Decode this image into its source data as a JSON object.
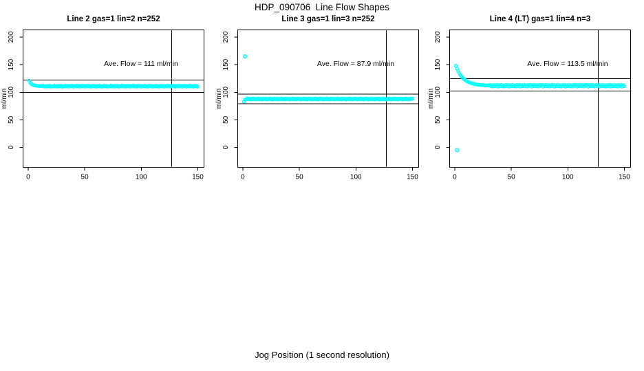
{
  "title": "HDP_090706  Line Flow Shapes",
  "xlabel": "Jog Position (1 second resolution)",
  "point_color": "#00FFFF",
  "line_color": "#000000",
  "chart_data": [
    {
      "type": "scatter",
      "title": "Line 2 gas=1 lin=2 n=252",
      "annotation": "Ave. Flow =  111  ml/min",
      "ylabel": "ml/min",
      "ave_flow": 111,
      "x_ticks": [
        0,
        50,
        100,
        150
      ],
      "y_ticks": [
        0,
        50,
        100,
        150,
        200
      ],
      "x_range": [
        -4.5,
        155.5
      ],
      "y_range": [
        -36,
        213
      ],
      "hlines": [
        122.1,
        99.9
      ],
      "vline": 127,
      "x_start": 1,
      "y_values": [
        121,
        117,
        115,
        113.7,
        112.8,
        112.2,
        111.8,
        111.5,
        111.4,
        111.2,
        111.2,
        111.1,
        112,
        110.4,
        111.3,
        110.1,
        111.7,
        110.8,
        111.8,
        110,
        111.2,
        110.5,
        112,
        110.4,
        111.3,
        110.1,
        111.7,
        110.8,
        111.8,
        110,
        111.2,
        110.5,
        112,
        110.4,
        111.3,
        110.1,
        111.7,
        110.8,
        111.8,
        110,
        111.2,
        110.5,
        112,
        110.4,
        111.3,
        110.1,
        111.7,
        110.8,
        111.8,
        110,
        111.2,
        110.5,
        112,
        110.4,
        111.3,
        110.1,
        111.7,
        110.8,
        111.8,
        110,
        111.2,
        110.5,
        112,
        110.4,
        111.3,
        110.1,
        111.7,
        110.8,
        111.8,
        110,
        111.2,
        110.5,
        112,
        110.4,
        111.3,
        110.1,
        111.7,
        110.8,
        111.8,
        110,
        111.2,
        110.5,
        112,
        110.4,
        111.3,
        110.1,
        111.7,
        110.8,
        111.8,
        110,
        111.2,
        110.5,
        112,
        110.4,
        111.3,
        110.1,
        111.7,
        110.8,
        111.8,
        110,
        111.2,
        110.5,
        112,
        110.4,
        111.3,
        110.1,
        111.7,
        110.8,
        111.8,
        110,
        111.2,
        110.5,
        112,
        110.4,
        111.3,
        110.1,
        111.7,
        110.8,
        111.8,
        110,
        111.2,
        110.5,
        112,
        110.4,
        111.3,
        110.1,
        111.7,
        110.8,
        111.8,
        110,
        111.2,
        110.5,
        112,
        110.4,
        111.3,
        110.1,
        111.7,
        110.8,
        111.8,
        110,
        111.2,
        110.5,
        112,
        110.4,
        111.3,
        110.1,
        111.7,
        110.8,
        111.8,
        110
      ],
      "outliers": []
    },
    {
      "type": "scatter",
      "title": "Line 3 gas=1 lin=3 n=252",
      "annotation": "Ave. Flow =  87.9  ml/min",
      "ylabel": "ml/min",
      "ave_flow": 87.9,
      "x_ticks": [
        0,
        50,
        100,
        150
      ],
      "y_ticks": [
        0,
        50,
        100,
        150,
        200
      ],
      "x_range": [
        -4.5,
        155.5
      ],
      "y_range": [
        -36,
        213
      ],
      "hlines": [
        96.7,
        79.1
      ],
      "vline": 127,
      "x_start": 1,
      "y_values": [
        83,
        86.5,
        87.3,
        88.8,
        87.2,
        88.1,
        86.9,
        88.5,
        87.6,
        88.6,
        86.8,
        88,
        87.3,
        88.8,
        87.2,
        88.1,
        86.9,
        88.5,
        87.6,
        88.6,
        86.8,
        88,
        87.3,
        88.8,
        87.2,
        88.1,
        86.9,
        88.5,
        87.6,
        88.6,
        86.8,
        88,
        87.3,
        88.8,
        87.2,
        88.1,
        86.9,
        88.5,
        87.6,
        88.6,
        86.8,
        88,
        87.3,
        88.8,
        87.2,
        88.1,
        86.9,
        88.5,
        87.6,
        88.6,
        86.8,
        88,
        87.3,
        88.8,
        87.2,
        88.1,
        86.9,
        88.5,
        87.6,
        88.6,
        86.8,
        88,
        87.3,
        88.8,
        87.2,
        88.1,
        86.9,
        88.5,
        87.6,
        88.6,
        86.8,
        88,
        87.3,
        88.8,
        87.2,
        88.1,
        86.9,
        88.5,
        87.6,
        88.6,
        86.8,
        88,
        87.3,
        88.8,
        87.2,
        88.1,
        86.9,
        88.5,
        87.6,
        88.6,
        86.8,
        88,
        87.3,
        88.8,
        87.2,
        88.1,
        86.9,
        88.5,
        87.6,
        88.6,
        86.8,
        88,
        87.3,
        88.8,
        87.2,
        88.1,
        86.9,
        88.5,
        87.6,
        88.6,
        86.8,
        88,
        87.3,
        88.8,
        87.2,
        88.1,
        86.9,
        88.5,
        87.6,
        88.6,
        86.8,
        88,
        87.3,
        88.8,
        87.2,
        88.1,
        86.9,
        88.5,
        87.6,
        88.6,
        86.8,
        88,
        87.3,
        88.8,
        87.2,
        88.1,
        86.9,
        88.5,
        87.6,
        88.6,
        86.8,
        88,
        87.3,
        88.8,
        87.2,
        88.1,
        86.9,
        88.5,
        87.6,
        88.6
      ],
      "outliers": [
        [
          2,
          165
        ]
      ]
    },
    {
      "type": "scatter",
      "title": "Line 4 (LT) gas=1 lin=4 n=3",
      "annotation": "Ave. Flow =  113.5  ml/min",
      "ylabel": "ml/min",
      "ave_flow": 113.5,
      "x_ticks": [
        0,
        50,
        100,
        150
      ],
      "y_ticks": [
        0,
        50,
        100,
        150,
        200
      ],
      "x_range": [
        -4.5,
        155.5
      ],
      "y_range": [
        -36,
        213
      ],
      "hlines": [
        124.9,
        102.2
      ],
      "vline": 127,
      "x_start": 1,
      "y_values": [
        148,
        142.9,
        138.5,
        134.7,
        131.5,
        128.7,
        126.3,
        124.3,
        122.5,
        121,
        119.8,
        118.6,
        117.7,
        116.9,
        116.2,
        115.6,
        115.1,
        114.6,
        114.3,
        113.9,
        113.6,
        113.4,
        113.2,
        113,
        112.9,
        112.7,
        112.6,
        112.5,
        112.4,
        112.3,
        113.5,
        110.8,
        112.6,
        110.4,
        113.2,
        111.5,
        113.4,
        110.2,
        112.8,
        111,
        113.5,
        110.8,
        112.6,
        110.4,
        113.2,
        111.5,
        113.4,
        110.2,
        112.8,
        111,
        113.5,
        110.8,
        112.6,
        110.4,
        113.2,
        111.5,
        113.4,
        110.2,
        112.8,
        111,
        113.5,
        110.8,
        112.6,
        110.4,
        113.2,
        111.5,
        113.4,
        110.2,
        112.8,
        111,
        113.5,
        110.8,
        112.6,
        110.4,
        113.2,
        111.5,
        113.4,
        110.2,
        112.8,
        111,
        113.5,
        110.8,
        112.6,
        110.4,
        113.2,
        111.5,
        113.4,
        110.2,
        112.8,
        111,
        113.5,
        110.8,
        112.6,
        110.4,
        113.2,
        111.5,
        113.4,
        110.2,
        112.8,
        111,
        113.5,
        110.8,
        112.6,
        110.4,
        113.2,
        111.5,
        113.4,
        110.2,
        112.8,
        111,
        113.5,
        110.8,
        112.6,
        110.4,
        113.2,
        111.5,
        113.4,
        110.2,
        112.8,
        111,
        113.5,
        110.8,
        112.6,
        110.4,
        113.2,
        111.5,
        113.4,
        110.2,
        112.8,
        111,
        113.5,
        110.8,
        112.6,
        110.4,
        113.2,
        111.5,
        113.4,
        110.2,
        112.8,
        111,
        113.5,
        110.8,
        112.6,
        110.4,
        113.2,
        111.5,
        113.4,
        110.2,
        112.8,
        111
      ],
      "outliers": [
        [
          2,
          -5
        ]
      ]
    }
  ]
}
